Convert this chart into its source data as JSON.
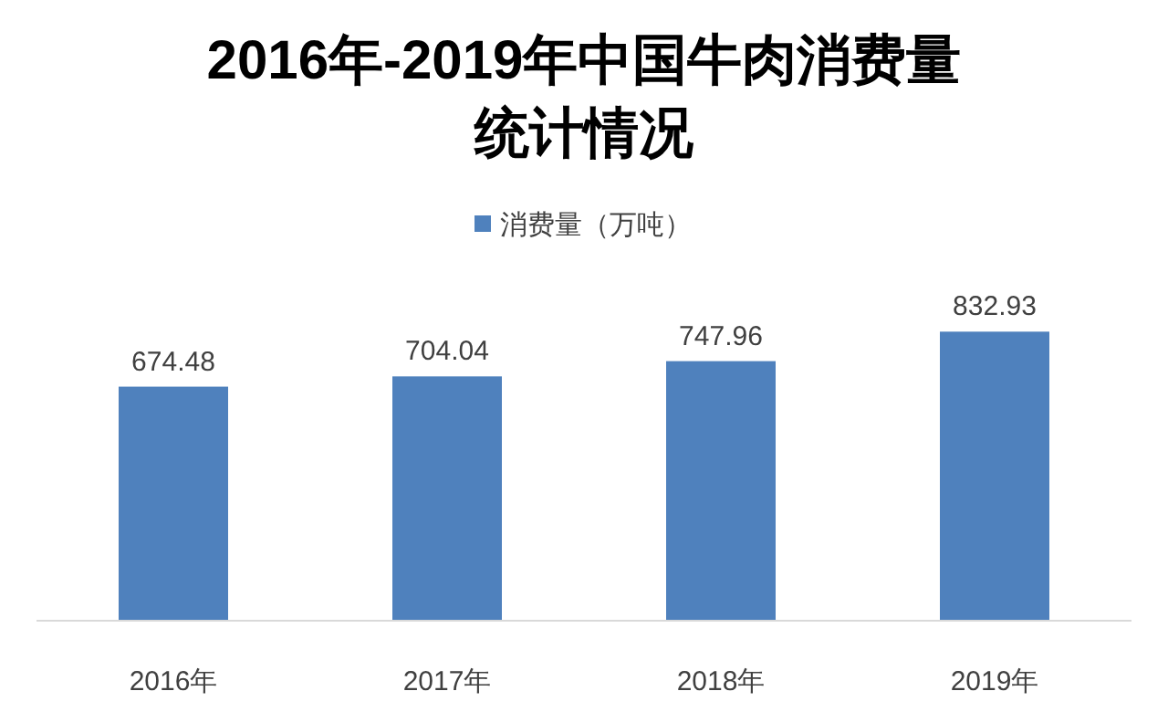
{
  "chart_data": {
    "type": "bar",
    "title": "2016年-2019年中国牛肉消费量统计情况",
    "categories": [
      "2016年",
      "2017年",
      "2018年",
      "2019年"
    ],
    "series": [
      {
        "name": "消费量（万吨）",
        "color": "#4f81bd",
        "values": [
          674.48,
          704.04,
          747.96,
          832.93
        ]
      }
    ],
    "data_labels": true,
    "legend": "top"
  }
}
